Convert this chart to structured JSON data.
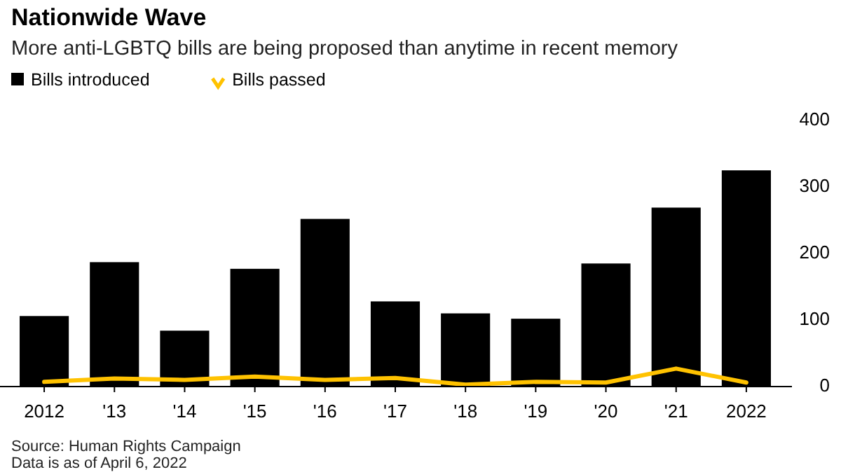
{
  "chart_data": {
    "type": "bar",
    "title": "Nationwide Wave",
    "subtitle": "More anti-LGBTQ bills are being proposed than anytime in recent memory",
    "categories": [
      "2012",
      "'13",
      "'14",
      "'15",
      "'16",
      "'17",
      "'18",
      "'19",
      "'20",
      "'21",
      "2022"
    ],
    "series": [
      {
        "name": "Bills introduced",
        "color": "#000000",
        "values": [
          106,
          187,
          84,
          177,
          252,
          128,
          110,
          102,
          185,
          269,
          325
        ]
      },
      {
        "name": "Bills passed",
        "type": "line",
        "color": "#ffc200",
        "values": [
          7,
          12,
          10,
          15,
          10,
          13,
          3,
          7,
          6,
          27,
          6
        ]
      }
    ],
    "ylim": [
      0,
      400
    ],
    "yticks": [
      0,
      100,
      200,
      300,
      400
    ],
    "legend": "top left",
    "annotations": [
      "Source: Human Rights Campaign",
      "Data is as of April 6, 2022"
    ]
  }
}
